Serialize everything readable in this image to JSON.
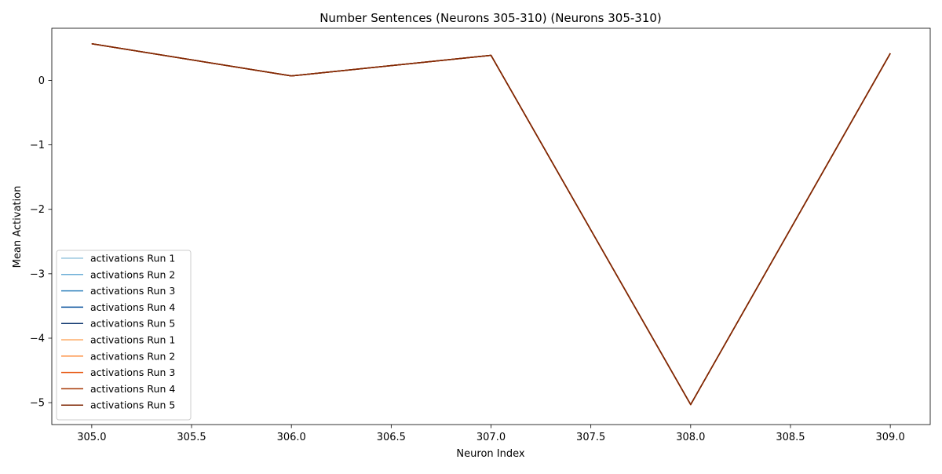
{
  "chart_data": {
    "type": "line",
    "title": "Number Sentences (Neurons 305-310) (Neurons 305-310)",
    "xlabel": "Neuron Index",
    "ylabel": "Mean Activation",
    "xlim": [
      304.8,
      309.2
    ],
    "ylim": [
      -5.34,
      0.81
    ],
    "xticks": [
      305.0,
      305.5,
      306.0,
      306.5,
      307.0,
      307.5,
      308.0,
      308.5,
      309.0
    ],
    "xtick_labels": [
      "305.0",
      "305.5",
      "306.0",
      "306.5",
      "307.0",
      "307.5",
      "308.0",
      "308.5",
      "309.0"
    ],
    "yticks": [
      0,
      -1,
      -2,
      -3,
      -4,
      -5
    ],
    "ytick_labels": [
      "0",
      "−1",
      "−2",
      "−3",
      "−4",
      "−5"
    ],
    "grid": false,
    "legend_position": "lower-left",
    "x": [
      305,
      306,
      307,
      308,
      309
    ],
    "series": [
      {
        "name": "activations Run 1",
        "color": "#9ecae1",
        "values": [
          0.57,
          0.07,
          0.39,
          -5.03,
          0.42
        ]
      },
      {
        "name": "activations Run 2",
        "color": "#6baed6",
        "values": [
          0.57,
          0.07,
          0.39,
          -5.03,
          0.42
        ]
      },
      {
        "name": "activations Run 3",
        "color": "#3182bd",
        "values": [
          0.57,
          0.07,
          0.39,
          -5.03,
          0.42
        ]
      },
      {
        "name": "activations Run 4",
        "color": "#08519c",
        "values": [
          0.57,
          0.07,
          0.39,
          -5.03,
          0.42
        ]
      },
      {
        "name": "activations Run 5",
        "color": "#08306b",
        "values": [
          0.57,
          0.07,
          0.39,
          -5.03,
          0.42
        ]
      },
      {
        "name": "activations Run 1",
        "color": "#fdae6b",
        "values": [
          0.57,
          0.07,
          0.39,
          -5.03,
          0.42
        ]
      },
      {
        "name": "activations Run 2",
        "color": "#fd8d3c",
        "values": [
          0.57,
          0.07,
          0.39,
          -5.03,
          0.42
        ]
      },
      {
        "name": "activations Run 3",
        "color": "#e6550d",
        "values": [
          0.57,
          0.07,
          0.39,
          -5.03,
          0.42
        ]
      },
      {
        "name": "activations Run 4",
        "color": "#a63603",
        "values": [
          0.57,
          0.07,
          0.39,
          -5.03,
          0.42
        ]
      },
      {
        "name": "activations Run 5",
        "color": "#7f2704",
        "values": [
          0.57,
          0.07,
          0.39,
          -5.03,
          0.42
        ]
      }
    ]
  }
}
